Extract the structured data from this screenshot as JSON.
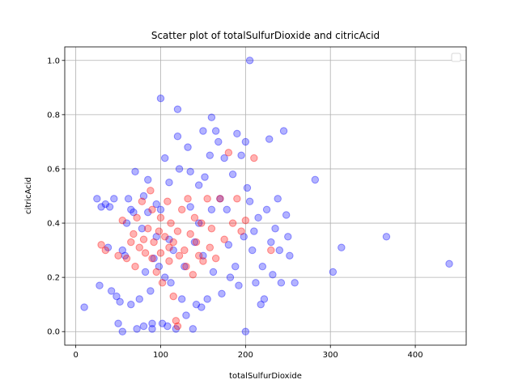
{
  "chart_data": {
    "type": "scatter",
    "title": "Scatter plot of totalSulfurDioxide and citricAcid",
    "xlabel": "totalSulfurDioxide",
    "ylabel": "citricAcid",
    "xlim": [
      -13,
      460
    ],
    "ylim": [
      -0.05,
      1.05
    ],
    "xticks": [
      0,
      100,
      200,
      300,
      400
    ],
    "yticks": [
      0.0,
      0.2,
      0.4,
      0.6,
      0.8,
      1.0
    ],
    "grid": true,
    "legend": {
      "position": "top-right",
      "entries": []
    },
    "point_opacity": 0.3,
    "series": [
      {
        "color": "#0000ff",
        "points": [
          [
            10,
            0.09
          ],
          [
            25,
            0.49
          ],
          [
            28,
            0.17
          ],
          [
            30,
            0.46
          ],
          [
            35,
            0.47
          ],
          [
            38,
            0.31
          ],
          [
            40,
            0.46
          ],
          [
            42,
            0.15
          ],
          [
            45,
            0.49
          ],
          [
            48,
            0.13
          ],
          [
            50,
            0.03
          ],
          [
            52,
            0.11
          ],
          [
            55,
            0.0
          ],
          [
            55,
            0.3
          ],
          [
            58,
            0.28
          ],
          [
            60,
            0.4
          ],
          [
            62,
            0.49
          ],
          [
            65,
            0.1
          ],
          [
            65,
            0.45
          ],
          [
            68,
            0.44
          ],
          [
            70,
            0.59
          ],
          [
            72,
            0.01
          ],
          [
            75,
            0.12
          ],
          [
            78,
            0.38
          ],
          [
            80,
            0.5
          ],
          [
            80,
            0.02
          ],
          [
            82,
            0.22
          ],
          [
            85,
            0.56
          ],
          [
            85,
            0.44
          ],
          [
            88,
            0.15
          ],
          [
            90,
            0.01
          ],
          [
            90,
            0.03
          ],
          [
            92,
            0.27
          ],
          [
            95,
            0.47
          ],
          [
            95,
            0.35
          ],
          [
            98,
            0.24
          ],
          [
            100,
            0.86
          ],
          [
            100,
            0.45
          ],
          [
            102,
            0.03
          ],
          [
            105,
            0.64
          ],
          [
            105,
            0.2
          ],
          [
            108,
            0.02
          ],
          [
            110,
            0.55
          ],
          [
            110,
            0.34
          ],
          [
            112,
            0.18
          ],
          [
            115,
            0.3
          ],
          [
            118,
            0.01
          ],
          [
            120,
            0.82
          ],
          [
            120,
            0.72
          ],
          [
            122,
            0.6
          ],
          [
            125,
            0.12
          ],
          [
            128,
            0.24
          ],
          [
            130,
            0.06
          ],
          [
            132,
            0.68
          ],
          [
            135,
            0.59
          ],
          [
            135,
            0.46
          ],
          [
            138,
            0.01
          ],
          [
            140,
            0.33
          ],
          [
            142,
            0.1
          ],
          [
            145,
            0.54
          ],
          [
            145,
            0.4
          ],
          [
            148,
            0.09
          ],
          [
            150,
            0.74
          ],
          [
            150,
            0.28
          ],
          [
            152,
            0.57
          ],
          [
            155,
            0.12
          ],
          [
            158,
            0.65
          ],
          [
            160,
            0.79
          ],
          [
            160,
            0.45
          ],
          [
            162,
            0.22
          ],
          [
            165,
            0.74
          ],
          [
            168,
            0.7
          ],
          [
            170,
            0.49
          ],
          [
            172,
            0.14
          ],
          [
            175,
            0.64
          ],
          [
            178,
            0.45
          ],
          [
            180,
            0.32
          ],
          [
            182,
            0.2
          ],
          [
            185,
            0.58
          ],
          [
            188,
            0.24
          ],
          [
            190,
            0.73
          ],
          [
            192,
            0.17
          ],
          [
            195,
            0.65
          ],
          [
            198,
            0.35
          ],
          [
            200,
            0.0
          ],
          [
            200,
            0.7
          ],
          [
            202,
            0.53
          ],
          [
            205,
            0.48
          ],
          [
            205,
            1.0
          ],
          [
            208,
            0.3
          ],
          [
            210,
            0.37
          ],
          [
            212,
            0.18
          ],
          [
            215,
            0.42
          ],
          [
            218,
            0.1
          ],
          [
            220,
            0.24
          ],
          [
            222,
            0.12
          ],
          [
            225,
            0.45
          ],
          [
            228,
            0.71
          ],
          [
            230,
            0.33
          ],
          [
            232,
            0.21
          ],
          [
            235,
            0.38
          ],
          [
            238,
            0.49
          ],
          [
            240,
            0.3
          ],
          [
            242,
            0.18
          ],
          [
            245,
            0.74
          ],
          [
            248,
            0.43
          ],
          [
            250,
            0.35
          ],
          [
            252,
            0.28
          ],
          [
            258,
            0.18
          ],
          [
            282,
            0.56
          ],
          [
            303,
            0.22
          ],
          [
            313,
            0.31
          ],
          [
            366,
            0.35
          ],
          [
            440,
            0.25
          ]
        ]
      },
      {
        "color": "#ff0000",
        "points": [
          [
            30,
            0.32
          ],
          [
            35,
            0.3
          ],
          [
            50,
            0.28
          ],
          [
            55,
            0.41
          ],
          [
            60,
            0.27
          ],
          [
            65,
            0.33
          ],
          [
            68,
            0.36
          ],
          [
            70,
            0.24
          ],
          [
            72,
            0.42
          ],
          [
            75,
            0.31
          ],
          [
            78,
            0.48
          ],
          [
            80,
            0.34
          ],
          [
            82,
            0.29
          ],
          [
            85,
            0.38
          ],
          [
            88,
            0.52
          ],
          [
            90,
            0.27
          ],
          [
            90,
            0.45
          ],
          [
            92,
            0.33
          ],
          [
            95,
            0.22
          ],
          [
            98,
            0.37
          ],
          [
            100,
            0.42
          ],
          [
            100,
            0.29
          ],
          [
            102,
            0.18
          ],
          [
            105,
            0.35
          ],
          [
            108,
            0.48
          ],
          [
            110,
            0.31
          ],
          [
            110,
            0.26
          ],
          [
            112,
            0.4
          ],
          [
            115,
            0.13
          ],
          [
            115,
            0.33
          ],
          [
            118,
            0.04
          ],
          [
            120,
            0.02
          ],
          [
            120,
            0.37
          ],
          [
            122,
            0.28
          ],
          [
            125,
            0.45
          ],
          [
            128,
            0.3
          ],
          [
            130,
            0.24
          ],
          [
            132,
            0.49
          ],
          [
            135,
            0.36
          ],
          [
            138,
            0.21
          ],
          [
            140,
            0.42
          ],
          [
            142,
            0.33
          ],
          [
            145,
            0.28
          ],
          [
            148,
            0.4
          ],
          [
            150,
            0.26
          ],
          [
            155,
            0.49
          ],
          [
            158,
            0.31
          ],
          [
            160,
            0.38
          ],
          [
            165,
            0.27
          ],
          [
            170,
            0.49
          ],
          [
            175,
            0.34
          ],
          [
            180,
            0.66
          ],
          [
            185,
            0.4
          ],
          [
            190,
            0.49
          ],
          [
            195,
            0.37
          ],
          [
            200,
            0.41
          ],
          [
            210,
            0.64
          ],
          [
            230,
            0.3
          ]
        ]
      }
    ]
  }
}
